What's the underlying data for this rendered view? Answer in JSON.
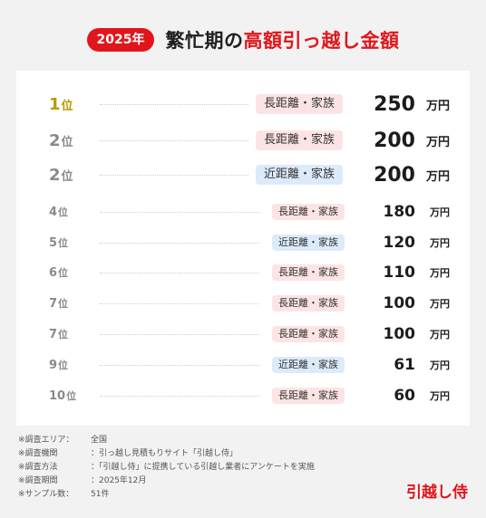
{
  "header": {
    "year": "2025年",
    "title_prefix": "繁忙期の",
    "title_highlight": "高額引っ越し金額"
  },
  "ranking": [
    {
      "rank": "1",
      "suffix": "位",
      "tag": "長距離・家族",
      "tag_kind": "long",
      "price": "250",
      "unit": "万円"
    },
    {
      "rank": "2",
      "suffix": "位",
      "tag": "長距離・家族",
      "tag_kind": "long",
      "price": "200",
      "unit": "万円"
    },
    {
      "rank": "2",
      "suffix": "位",
      "tag": "近距離・家族",
      "tag_kind": "near",
      "price": "200",
      "unit": "万円"
    },
    {
      "rank": "4",
      "suffix": "位",
      "tag": "長距離・家族",
      "tag_kind": "long",
      "price": "180",
      "unit": "万円"
    },
    {
      "rank": "5",
      "suffix": "位",
      "tag": "近距離・家族",
      "tag_kind": "near",
      "price": "120",
      "unit": "万円"
    },
    {
      "rank": "6",
      "suffix": "位",
      "tag": "長距離・家族",
      "tag_kind": "long",
      "price": "110",
      "unit": "万円"
    },
    {
      "rank": "7",
      "suffix": "位",
      "tag": "長距離・家族",
      "tag_kind": "long",
      "price": "100",
      "unit": "万円"
    },
    {
      "rank": "7",
      "suffix": "位",
      "tag": "長距離・家族",
      "tag_kind": "long",
      "price": "100",
      "unit": "万円"
    },
    {
      "rank": "9",
      "suffix": "位",
      "tag": "近距離・家族",
      "tag_kind": "near",
      "price": "61",
      "unit": "万円"
    },
    {
      "rank": "10",
      "suffix": "位",
      "tag": "長距離・家族",
      "tag_kind": "long",
      "price": "60",
      "unit": "万円"
    }
  ],
  "notes": [
    {
      "label": "※調査エリア：",
      "value": "全国"
    },
    {
      "label": "※調査機関　",
      "value": "：引っ越し見積もりサイト「引越し侍」"
    },
    {
      "label": "※調査方法　",
      "value": "：「引越し侍」に提携している引越し業者にアンケートを実施"
    },
    {
      "label": "※調査期間　",
      "value": "：2025年12月"
    },
    {
      "label": "※サンプル数：",
      "value": "51件"
    }
  ],
  "brand": "引越し侍",
  "colors": {
    "accent": "#e0161c",
    "gold": "#b89a00",
    "long_tag": "#fde4e4",
    "near_tag": "#dcebfb"
  }
}
